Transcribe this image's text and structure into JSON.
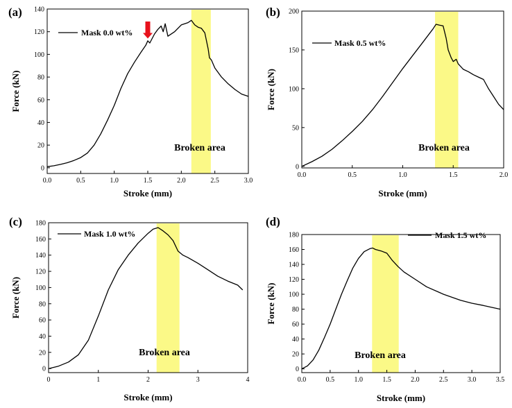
{
  "chart_data": [
    {
      "type": "line",
      "panel_label": "(a)",
      "xlabel": "Stroke (mm)",
      "ylabel": "Force (kN)",
      "xlim": [
        0,
        3.0
      ],
      "ylim": [
        -5,
        140
      ],
      "xticks": [
        0.0,
        0.5,
        1.0,
        1.5,
        2.0,
        2.5,
        3.0
      ],
      "xtick_labels": [
        "0.0",
        "0.5",
        "1.0",
        "1.5",
        "2.0",
        "2.5",
        "3.0"
      ],
      "yticks": [
        0,
        20,
        40,
        60,
        80,
        100,
        120,
        140
      ],
      "ytick_labels": [
        "0",
        "20",
        "40",
        "60",
        "80",
        "100",
        "120",
        "140"
      ],
      "legend": "Mask 0.0 wt%",
      "legend_position": "top-left",
      "highlight": {
        "label": "Broken area",
        "x_range": [
          2.15,
          2.44
        ]
      },
      "arrow": {
        "x": 1.5,
        "y_tip": 114,
        "y_tail": 129
      },
      "series": [
        {
          "name": "Mask 0.0 wt%",
          "x": [
            0,
            0.1,
            0.2,
            0.3,
            0.4,
            0.5,
            0.6,
            0.7,
            0.8,
            0.9,
            1.0,
            1.1,
            1.2,
            1.3,
            1.4,
            1.47,
            1.5,
            1.53,
            1.6,
            1.65,
            1.7,
            1.73,
            1.76,
            1.8,
            1.9,
            2.0,
            2.1,
            2.15,
            2.2,
            2.25,
            2.3,
            2.35,
            2.4,
            2.42,
            2.45,
            2.5,
            2.6,
            2.7,
            2.8,
            2.9,
            3.0
          ],
          "y": [
            1,
            1.8,
            3,
            4.5,
            6.5,
            9,
            13,
            20,
            30,
            42,
            55,
            70,
            83,
            93,
            102,
            108,
            112,
            110,
            118,
            122,
            125,
            120,
            127,
            116,
            120,
            126,
            128,
            130,
            126,
            124,
            123,
            119,
            105,
            97,
            95,
            88,
            80,
            74,
            69,
            65,
            63
          ]
        }
      ]
    },
    {
      "type": "line",
      "panel_label": "(b)",
      "xlabel": "Stroke (mm)",
      "ylabel": "Force (kN)",
      "xlim": [
        0,
        2.0
      ],
      "ylim": [
        -2,
        200
      ],
      "xticks": [
        0.0,
        0.5,
        1.0,
        1.5,
        2.0
      ],
      "xtick_labels": [
        "0.0",
        "0.5",
        "1.0",
        "1.5",
        "2.0"
      ],
      "yticks": [
        0,
        50,
        100,
        150,
        200
      ],
      "ytick_labels": [
        "0",
        "50",
        "100",
        "150",
        "200"
      ],
      "legend": "Mask 0.5 wt%",
      "legend_position": "top-left",
      "highlight": {
        "label": "Broken area",
        "x_range": [
          1.32,
          1.55
        ]
      },
      "series": [
        {
          "name": "Mask 0.5 wt%",
          "x": [
            0,
            0.1,
            0.2,
            0.3,
            0.4,
            0.5,
            0.6,
            0.7,
            0.8,
            0.9,
            1.0,
            1.1,
            1.2,
            1.3,
            1.33,
            1.36,
            1.4,
            1.43,
            1.45,
            1.48,
            1.5,
            1.53,
            1.55,
            1.6,
            1.65,
            1.7,
            1.75,
            1.8,
            1.85,
            1.9,
            1.95,
            2.0
          ],
          "y": [
            0,
            6,
            13,
            22,
            33,
            45,
            58,
            73,
            90,
            108,
            126,
            143,
            160,
            177,
            183,
            182,
            181,
            165,
            150,
            140,
            135,
            138,
            132,
            125,
            122,
            118,
            115,
            112,
            100,
            90,
            80,
            73
          ]
        }
      ]
    },
    {
      "type": "line",
      "panel_label": "(c)",
      "xlabel": "Stroke (mm)",
      "ylabel": "Force (kN)",
      "xlim": [
        0,
        4
      ],
      "ylim": [
        -5,
        180
      ],
      "xticks": [
        0,
        1,
        2,
        3,
        4
      ],
      "xtick_labels": [
        "0",
        "1",
        "2",
        "3",
        "4"
      ],
      "yticks": [
        0,
        20,
        40,
        60,
        80,
        100,
        120,
        140,
        160,
        180
      ],
      "ytick_labels": [
        "0",
        "20",
        "40",
        "60",
        "80",
        "100",
        "120",
        "140",
        "160",
        "180"
      ],
      "legend": "Mask 1.0 wt%",
      "legend_position": "top-left",
      "highlight": {
        "label": "Broken area",
        "x_range": [
          2.17,
          2.63
        ]
      },
      "series": [
        {
          "name": "Mask 1.0 wt%",
          "x": [
            0,
            0.2,
            0.4,
            0.6,
            0.8,
            1.0,
            1.2,
            1.4,
            1.6,
            1.8,
            2.0,
            2.1,
            2.2,
            2.3,
            2.4,
            2.5,
            2.6,
            2.7,
            2.8,
            3.0,
            3.2,
            3.4,
            3.6,
            3.8,
            3.9
          ],
          "y": [
            0,
            3,
            8,
            17,
            35,
            65,
            97,
            122,
            140,
            155,
            167,
            172,
            174,
            170,
            165,
            158,
            145,
            140,
            137,
            130,
            122,
            114,
            108,
            103,
            97
          ]
        }
      ]
    },
    {
      "type": "line",
      "panel_label": "(d)",
      "xlabel": "Stroke (mm)",
      "ylabel": "Force (kN)",
      "xlim": [
        0,
        3.5
      ],
      "ylim": [
        -5,
        180
      ],
      "xticks": [
        0.0,
        0.5,
        1.0,
        1.5,
        2.0,
        2.5,
        3.0,
        3.5
      ],
      "xtick_labels": [
        "0.0",
        "0.5",
        "1.0",
        "1.5",
        "2.0",
        "2.5",
        "3.0",
        "3.5"
      ],
      "yticks": [
        0,
        20,
        40,
        60,
        80,
        100,
        120,
        140,
        160,
        180
      ],
      "ytick_labels": [
        "0",
        "20",
        "40",
        "60",
        "80",
        "100",
        "120",
        "140",
        "160",
        "180"
      ],
      "legend": "Mask 1.5 wt%",
      "legend_position": "top-right",
      "highlight": {
        "label": "Broken area",
        "x_range": [
          1.24,
          1.71
        ]
      },
      "series": [
        {
          "name": "Mask 1.5 wt%",
          "x": [
            0,
            0.1,
            0.2,
            0.3,
            0.4,
            0.5,
            0.6,
            0.7,
            0.8,
            0.9,
            1.0,
            1.1,
            1.2,
            1.25,
            1.3,
            1.4,
            1.5,
            1.6,
            1.7,
            1.8,
            2.0,
            2.2,
            2.5,
            2.8,
            3.0,
            3.2,
            3.5
          ],
          "y": [
            0,
            4,
            12,
            25,
            42,
            60,
            80,
            100,
            118,
            135,
            148,
            157,
            161,
            162,
            160,
            158,
            155,
            145,
            137,
            130,
            120,
            110,
            100,
            92,
            88,
            85,
            80
          ]
        }
      ]
    }
  ]
}
